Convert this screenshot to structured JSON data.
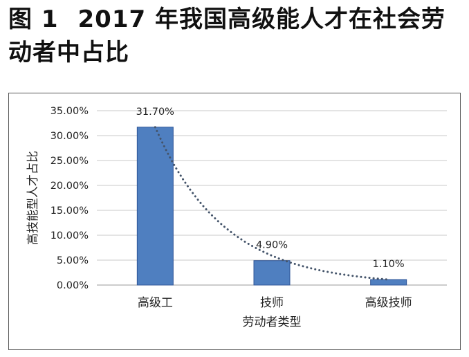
{
  "figure": {
    "number": "图 1",
    "title": "2017 年我国高级能人才在社会劳动者中占比"
  },
  "chart_data": {
    "type": "bar",
    "categories": [
      "高级工",
      "技师",
      "高级技师"
    ],
    "values": [
      31.7,
      4.9,
      1.1
    ],
    "data_labels": [
      "31.70%",
      "4.90%",
      "1.10%"
    ],
    "xlabel": "劳动者类型",
    "ylabel": "高技能型人才占比",
    "ylim": [
      0,
      35
    ],
    "yticks": [
      0,
      5,
      10,
      15,
      20,
      25,
      30,
      35
    ],
    "ytick_labels": [
      "0.00%",
      "5.00%",
      "10.00%",
      "15.00%",
      "20.00%",
      "25.00%",
      "30.00%",
      "35.00%"
    ],
    "grid": true,
    "trendline": "dotted exponential",
    "bar_color": "#4f7fc0",
    "trend_color": "#44546a"
  }
}
